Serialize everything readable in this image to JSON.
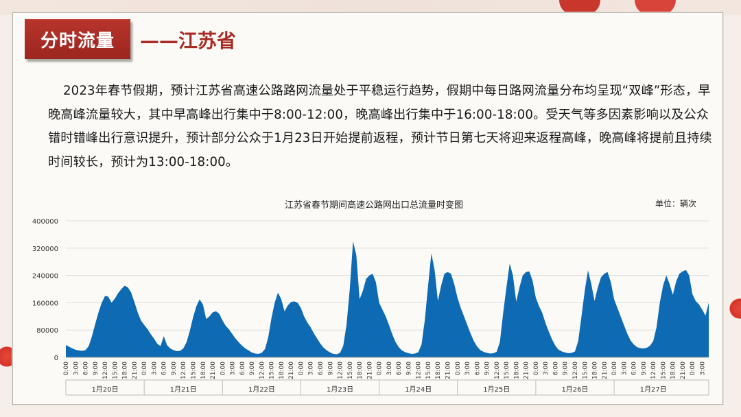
{
  "header": {
    "title": "分时流量",
    "subtitle": "——江苏省"
  },
  "body_text": "2023年春节假期，预计江苏省高速公路路网流量处于平稳运行趋势，假期中每日路网流量分布均呈现“双峰”形态，早晚高峰流量较大，其中早高峰出行集中于8:00-12:00，晚高峰出行集中于16:00-18:00。受天气等多因素影响以及公众错时错峰出行意识提升，预计部分公众于1月23日开始提前返程，预计节日第七天将迎来返程高峰，晚高峰将提前且持续时间较长，预计为13:00-18:00。",
  "colors": {
    "series": "#0f6ab4",
    "title_box": "#a72d26",
    "accent_text": "#a82c25"
  },
  "chart_data": {
    "type": "area",
    "title": "江苏省春节期间高速公路网出口总流量时变图",
    "unit_label": "单位：辆次",
    "ylim": [
      0,
      400000
    ],
    "yticks": [
      "0",
      "80000",
      "160000",
      "240000",
      "320000",
      "400000"
    ],
    "hour_ticks": [
      "0:00",
      "3:00",
      "6:00",
      "9:00",
      "12:00",
      "15:00",
      "18:00",
      "21:00"
    ],
    "days": [
      "1月20日",
      "1月21日",
      "1月22日",
      "1月23日",
      "1月24日",
      "1月25日",
      "1月26日",
      "1月27日"
    ],
    "grid": true,
    "series": [
      {
        "values": [
          36000,
          31000,
          26000,
          22000,
          20000,
          19000,
          21000,
          33000,
          62000,
          98000,
          132000,
          160000,
          180000,
          178000,
          160000,
          172000,
          188000,
          200000,
          210000,
          205000,
          190000,
          162000,
          132000,
          108000,
          95000,
          83000,
          68000,
          55000,
          40000,
          33000,
          62000,
          36000,
          26000,
          21000,
          18000,
          19000,
          26000,
          45000,
          78000,
          118000,
          150000,
          170000,
          155000,
          112000,
          120000,
          132000,
          135000,
          128000,
          108000,
          92000,
          82000,
          68000,
          55000,
          44000,
          34000,
          26000,
          20000,
          14000,
          11000,
          10000,
          13000,
          24000,
          58000,
          115000,
          160000,
          190000,
          170000,
          135000,
          152000,
          162000,
          164000,
          160000,
          145000,
          120000,
          102000,
          88000,
          70000,
          55000,
          40000,
          28000,
          20000,
          14000,
          10000,
          9000,
          13000,
          34000,
          95000,
          200000,
          340000,
          300000,
          170000,
          195000,
          230000,
          240000,
          245000,
          220000,
          160000,
          140000,
          120000,
          95000,
          68000,
          45000,
          30000,
          20000,
          15000,
          12000,
          10000,
          11000,
          15000,
          38000,
          110000,
          210000,
          305000,
          255000,
          165000,
          210000,
          245000,
          250000,
          245000,
          215000,
          175000,
          145000,
          120000,
          95000,
          70000,
          48000,
          32000,
          21000,
          16000,
          13000,
          11000,
          12000,
          16000,
          45000,
          130000,
          205000,
          275000,
          240000,
          163000,
          205000,
          240000,
          250000,
          252000,
          225000,
          175000,
          150000,
          130000,
          100000,
          75000,
          52000,
          34000,
          22000,
          17000,
          14000,
          12000,
          13000,
          17000,
          48000,
          120000,
          195000,
          255000,
          215000,
          165000,
          205000,
          235000,
          245000,
          250000,
          220000,
          170000,
          145000,
          120000,
          95000,
          70000,
          50000,
          38000,
          30000,
          27000,
          26000,
          28000,
          34000,
          48000,
          88000,
          160000,
          210000,
          240000,
          215000,
          183000,
          222000,
          245000,
          252000,
          256000,
          240000,
          185000,
          165000,
          155000,
          140000,
          122000,
          160000
        ]
      }
    ]
  }
}
